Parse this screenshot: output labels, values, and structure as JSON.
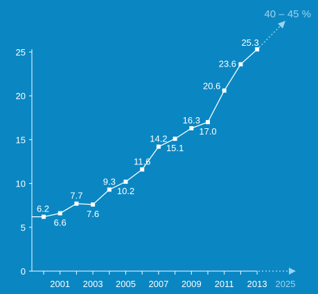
{
  "chart_data": {
    "type": "line",
    "title": "",
    "xlabel": "",
    "ylabel": "",
    "x": [
      2000,
      2001,
      2002,
      2003,
      2004,
      2005,
      2006,
      2007,
      2008,
      2009,
      2010,
      2011,
      2012,
      2013
    ],
    "values": [
      6.2,
      6.6,
      7.7,
      7.6,
      9.3,
      10.2,
      11.6,
      14.2,
      15.1,
      16.3,
      17.0,
      20.6,
      23.6,
      25.3
    ],
    "data_labels": [
      {
        "x": 2000,
        "text": "6.2"
      },
      {
        "x": 2001,
        "text": "6.6"
      },
      {
        "x": 2002,
        "text": "7.7"
      },
      {
        "x": 2003,
        "text": "7.6"
      },
      {
        "x": 2004,
        "text": "9.3"
      },
      {
        "x": 2005,
        "text": "10.2"
      },
      {
        "x": 2006,
        "text": "11.6"
      },
      {
        "x": 2007,
        "text": "14.2"
      },
      {
        "x": 2008,
        "text": "15.1"
      },
      {
        "x": 2009,
        "text": "16.3"
      },
      {
        "x": 2010,
        "text": "17.0"
      },
      {
        "x": 2011,
        "text": "20.6"
      },
      {
        "x": 2012,
        "text": "23.6"
      },
      {
        "x": 2013,
        "text": "25.3"
      }
    ],
    "xticks": [
      2001,
      2003,
      2005,
      2007,
      2009,
      2011,
      2013
    ],
    "xtick_labels": [
      "2001",
      "2003",
      "2005",
      "2007",
      "2009",
      "2011",
      "2013"
    ],
    "yticks": [
      0,
      5,
      10,
      15,
      20,
      25
    ],
    "ytick_labels": [
      "0",
      "5",
      "10",
      "15",
      "20",
      "25"
    ],
    "ylim": [
      0,
      25
    ],
    "xlim": [
      1999.4,
      2013
    ],
    "grid": false,
    "projection": {
      "x": 2025,
      "x_label": "2025",
      "label": "40 – 45 %"
    },
    "colors": {
      "background": "#0a87c3",
      "line": "#ffffff",
      "text": "#ffffff",
      "projection": "#9ed3ee"
    }
  }
}
